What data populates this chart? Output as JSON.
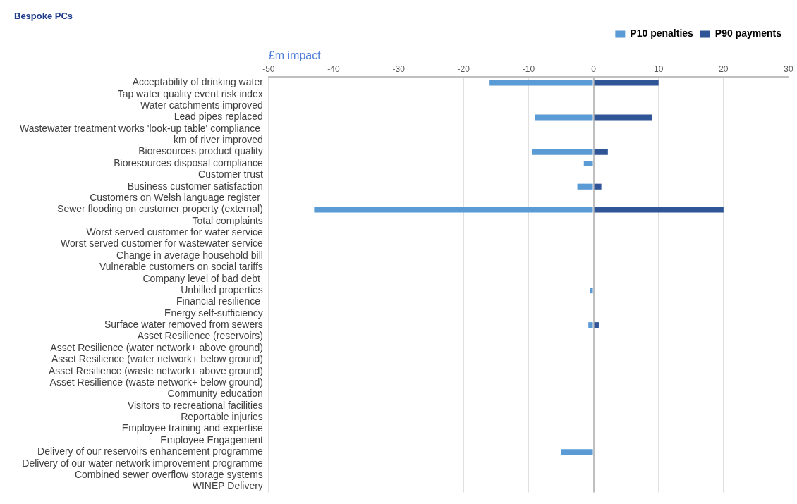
{
  "chart_data": {
    "type": "bar",
    "orientation": "horizontal",
    "stacked": true,
    "subtitle": "Bespoke PCs",
    "xlabel": "£m impact",
    "categories": [
      "Acceptability of drinking water",
      "Tap water quality event risk index",
      "Water catchments improved",
      "Lead pipes replaced",
      "Wastewater treatment works 'look-up table' compliance ",
      "km of river improved",
      "Bioresources product quality",
      "Bioresources disposal compliance",
      "Customer trust",
      "Business customer satisfaction",
      "Customers on Welsh language register ",
      "Sewer flooding on customer property (external)",
      "Total complaints",
      "Worst served customer for water service",
      "Worst served customer for wastewater service",
      "Change in average household bill",
      "Vulnerable customers on social tariffs",
      "Company level of bad debt ",
      "Unbilled properties",
      "Financial resilience ",
      "Energy self-sufficiency",
      "Surface water removed from sewers",
      "Asset Resilience (reservoirs)",
      "Asset Resilience (water network+ above ground)",
      "Asset Resilience (water network+ below ground)",
      "Asset Resilience (waste network+ above ground)",
      "Asset Resilience (waste network+ below ground)",
      "Community education",
      "Visitors to recreational facilities",
      "Reportable injuries",
      "Employee training and expertise",
      "Employee Engagement",
      "Delivery of our reservoirs enhancement programme",
      "Delivery of our water network improvement programme",
      "Combined sewer overflow storage systems",
      "WINEP Delivery"
    ],
    "series": [
      {
        "name": "P10 penalties",
        "color": "#5b9bd5",
        "values": [
          -16,
          null,
          null,
          -9,
          null,
          null,
          -9.5,
          -1.5,
          null,
          -2.5,
          null,
          -43,
          null,
          null,
          null,
          null,
          null,
          null,
          -0.5,
          null,
          null,
          -0.8,
          null,
          null,
          null,
          null,
          null,
          null,
          null,
          null,
          null,
          null,
          -5,
          null,
          null,
          null
        ]
      },
      {
        "name": "P90 payments",
        "color": "#2f5597",
        "values": [
          10,
          null,
          null,
          9,
          null,
          null,
          2.2,
          null,
          null,
          1.2,
          null,
          20,
          null,
          null,
          null,
          null,
          null,
          null,
          null,
          null,
          null,
          0.8,
          null,
          null,
          null,
          null,
          null,
          null,
          null,
          null,
          null,
          null,
          null,
          null,
          null,
          null
        ]
      }
    ],
    "xlim": [
      -50,
      30
    ],
    "xticks": [
      -50,
      -40,
      -30,
      -20,
      -10,
      0,
      10,
      20,
      30
    ],
    "grid": "x",
    "legend": "top right"
  }
}
